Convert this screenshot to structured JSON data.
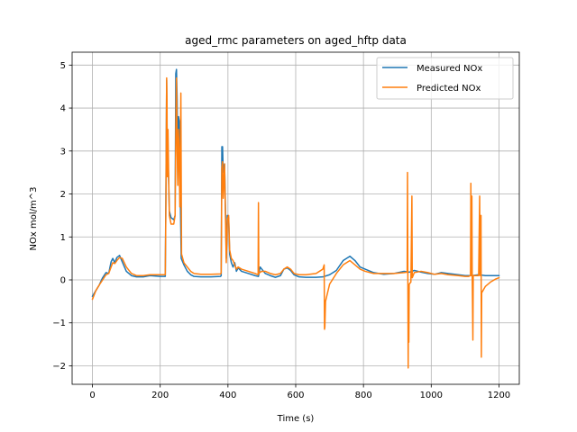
{
  "chart_data": {
    "type": "line",
    "title": "aged_rmc parameters on aged_hftp data",
    "xlabel": "Time (s)",
    "ylabel": "NOx mol/m^3",
    "xlim": [
      -60,
      1260
    ],
    "ylim": [
      -2.43,
      5.3
    ],
    "x_ticks": [
      0,
      200,
      400,
      600,
      800,
      1000,
      1200
    ],
    "y_ticks": [
      -2,
      -1,
      0,
      1,
      2,
      3,
      4,
      5
    ],
    "x_tick_labels": [
      "0",
      "200",
      "400",
      "600",
      "800",
      "1000",
      "1200"
    ],
    "y_tick_labels": [
      "−2",
      "−1",
      "0",
      "1",
      "2",
      "3",
      "4",
      "5"
    ],
    "grid": true,
    "legend_position": "upper-right",
    "series": [
      {
        "name": "Measured NOx",
        "color": "#1f77b4",
        "points": [
          [
            0,
            -0.38
          ],
          [
            10,
            -0.25
          ],
          [
            20,
            -0.12
          ],
          [
            30,
            0.05
          ],
          [
            40,
            0.17
          ],
          [
            48,
            0.15
          ],
          [
            55,
            0.42
          ],
          [
            60,
            0.5
          ],
          [
            66,
            0.4
          ],
          [
            72,
            0.52
          ],
          [
            80,
            0.57
          ],
          [
            88,
            0.42
          ],
          [
            100,
            0.2
          ],
          [
            115,
            0.1
          ],
          [
            130,
            0.07
          ],
          [
            150,
            0.07
          ],
          [
            170,
            0.1
          ],
          [
            200,
            0.08
          ],
          [
            215,
            0.08
          ],
          [
            217,
            2.2
          ],
          [
            219,
            4.65
          ],
          [
            221,
            2.8
          ],
          [
            224,
            2.6
          ],
          [
            227,
            1.6
          ],
          [
            232,
            1.45
          ],
          [
            240,
            1.4
          ],
          [
            244,
            1.5
          ],
          [
            246,
            4.8
          ],
          [
            248,
            4.9
          ],
          [
            250,
            4.2
          ],
          [
            252,
            2.3
          ],
          [
            254,
            3.8
          ],
          [
            256,
            3.7
          ],
          [
            258,
            2.5
          ],
          [
            260,
            1.6
          ],
          [
            262,
            0.5
          ],
          [
            270,
            0.35
          ],
          [
            280,
            0.2
          ],
          [
            290,
            0.12
          ],
          [
            300,
            0.08
          ],
          [
            320,
            0.07
          ],
          [
            350,
            0.07
          ],
          [
            378,
            0.08
          ],
          [
            380,
            0.1
          ],
          [
            382,
            3.1
          ],
          [
            384,
            3.1
          ],
          [
            386,
            2.5
          ],
          [
            390,
            2.7
          ],
          [
            393,
            1.5
          ],
          [
            395,
            0.5
          ],
          [
            398,
            1.5
          ],
          [
            402,
            1.45
          ],
          [
            405,
            0.6
          ],
          [
            410,
            0.4
          ],
          [
            415,
            0.3
          ],
          [
            420,
            0.4
          ],
          [
            425,
            0.2
          ],
          [
            430,
            0.28
          ],
          [
            440,
            0.2
          ],
          [
            460,
            0.15
          ],
          [
            480,
            0.1
          ],
          [
            490,
            0.08
          ],
          [
            495,
            0.3
          ],
          [
            500,
            0.25
          ],
          [
            510,
            0.15
          ],
          [
            525,
            0.1
          ],
          [
            540,
            0.06
          ],
          [
            555,
            0.1
          ],
          [
            565,
            0.25
          ],
          [
            575,
            0.28
          ],
          [
            585,
            0.22
          ],
          [
            595,
            0.12
          ],
          [
            610,
            0.07
          ],
          [
            630,
            0.06
          ],
          [
            660,
            0.06
          ],
          [
            680,
            0.07
          ],
          [
            700,
            0.12
          ],
          [
            720,
            0.22
          ],
          [
            740,
            0.45
          ],
          [
            760,
            0.55
          ],
          [
            775,
            0.45
          ],
          [
            790,
            0.3
          ],
          [
            805,
            0.25
          ],
          [
            830,
            0.17
          ],
          [
            860,
            0.13
          ],
          [
            890,
            0.15
          ],
          [
            920,
            0.2
          ],
          [
            935,
            0.18
          ],
          [
            950,
            0.22
          ],
          [
            970,
            0.18
          ],
          [
            990,
            0.15
          ],
          [
            1010,
            0.13
          ],
          [
            1030,
            0.17
          ],
          [
            1050,
            0.15
          ],
          [
            1080,
            0.12
          ],
          [
            1100,
            0.1
          ],
          [
            1120,
            0.1
          ],
          [
            1140,
            0.12
          ],
          [
            1160,
            0.1
          ],
          [
            1180,
            0.1
          ],
          [
            1200,
            0.1
          ]
        ]
      },
      {
        "name": "Predicted NOx",
        "color": "#ff7f0e",
        "points": [
          [
            0,
            -0.45
          ],
          [
            10,
            -0.25
          ],
          [
            20,
            -0.12
          ],
          [
            30,
            0.0
          ],
          [
            40,
            0.12
          ],
          [
            48,
            0.15
          ],
          [
            55,
            0.3
          ],
          [
            60,
            0.4
          ],
          [
            66,
            0.38
          ],
          [
            72,
            0.45
          ],
          [
            80,
            0.52
          ],
          [
            88,
            0.5
          ],
          [
            100,
            0.3
          ],
          [
            115,
            0.15
          ],
          [
            130,
            0.1
          ],
          [
            150,
            0.1
          ],
          [
            170,
            0.12
          ],
          [
            200,
            0.12
          ],
          [
            215,
            0.12
          ],
          [
            217,
            1.9
          ],
          [
            219,
            4.7
          ],
          [
            220,
            4.2
          ],
          [
            221,
            2.4
          ],
          [
            223,
            3.5
          ],
          [
            225,
            2.4
          ],
          [
            227,
            1.5
          ],
          [
            232,
            1.3
          ],
          [
            240,
            1.3
          ],
          [
            244,
            1.5
          ],
          [
            246,
            3.4
          ],
          [
            248,
            4.7
          ],
          [
            250,
            3.0
          ],
          [
            252,
            2.2
          ],
          [
            254,
            3.5
          ],
          [
            256,
            2.9
          ],
          [
            258,
            1.7
          ],
          [
            261,
            4.35
          ],
          [
            263,
            0.6
          ],
          [
            270,
            0.4
          ],
          [
            280,
            0.3
          ],
          [
            290,
            0.2
          ],
          [
            300,
            0.15
          ],
          [
            320,
            0.13
          ],
          [
            350,
            0.13
          ],
          [
            378,
            0.14
          ],
          [
            380,
            0.16
          ],
          [
            382,
            2.6
          ],
          [
            384,
            2.75
          ],
          [
            386,
            1.9
          ],
          [
            390,
            2.7
          ],
          [
            393,
            1.3
          ],
          [
            395,
            0.4
          ],
          [
            398,
            1.4
          ],
          [
            402,
            1.5
          ],
          [
            405,
            0.7
          ],
          [
            410,
            0.5
          ],
          [
            415,
            0.45
          ],
          [
            420,
            0.35
          ],
          [
            425,
            0.25
          ],
          [
            430,
            0.3
          ],
          [
            440,
            0.25
          ],
          [
            460,
            0.2
          ],
          [
            480,
            0.15
          ],
          [
            489,
            0.12
          ],
          [
            490,
            1.8
          ],
          [
            491,
            0.15
          ],
          [
            495,
            0.18
          ],
          [
            500,
            0.2
          ],
          [
            510,
            0.2
          ],
          [
            525,
            0.15
          ],
          [
            540,
            0.12
          ],
          [
            555,
            0.15
          ],
          [
            565,
            0.25
          ],
          [
            575,
            0.3
          ],
          [
            585,
            0.25
          ],
          [
            595,
            0.15
          ],
          [
            610,
            0.12
          ],
          [
            630,
            0.12
          ],
          [
            660,
            0.15
          ],
          [
            680,
            0.25
          ],
          [
            684,
            0.35
          ],
          [
            685,
            -1.15
          ],
          [
            686,
            -1.1
          ],
          [
            688,
            -0.5
          ],
          [
            700,
            -0.1
          ],
          [
            720,
            0.15
          ],
          [
            740,
            0.35
          ],
          [
            760,
            0.45
          ],
          [
            775,
            0.35
          ],
          [
            790,
            0.25
          ],
          [
            805,
            0.2
          ],
          [
            830,
            0.15
          ],
          [
            860,
            0.15
          ],
          [
            890,
            0.15
          ],
          [
            920,
            0.17
          ],
          [
            929,
            0.18
          ],
          [
            930,
            2.5
          ],
          [
            931,
            0.1
          ],
          [
            932,
            -2.05
          ],
          [
            933,
            -0.15
          ],
          [
            934,
            -1.45
          ],
          [
            935,
            -0.1
          ],
          [
            940,
            -0.05
          ],
          [
            943,
            1.95
          ],
          [
            944,
            0.05
          ],
          [
            950,
            0.17
          ],
          [
            970,
            0.2
          ],
          [
            990,
            0.17
          ],
          [
            1010,
            0.13
          ],
          [
            1030,
            0.15
          ],
          [
            1050,
            0.12
          ],
          [
            1080,
            0.1
          ],
          [
            1100,
            0.08
          ],
          [
            1110,
            0.08
          ],
          [
            1116,
            0.1
          ],
          [
            1117,
            2.25
          ],
          [
            1118,
            0.1
          ],
          [
            1120,
            1.95
          ],
          [
            1121,
            0.1
          ],
          [
            1123,
            -1.4
          ],
          [
            1124,
            0.1
          ],
          [
            1130,
            0.1
          ],
          [
            1140,
            0.1
          ],
          [
            1143,
            1.95
          ],
          [
            1144,
            0.1
          ],
          [
            1147,
            1.5
          ],
          [
            1148,
            -1.8
          ],
          [
            1149,
            -0.3
          ],
          [
            1160,
            -0.15
          ],
          [
            1175,
            -0.05
          ],
          [
            1190,
            0.02
          ],
          [
            1200,
            0.05
          ]
        ]
      }
    ]
  }
}
